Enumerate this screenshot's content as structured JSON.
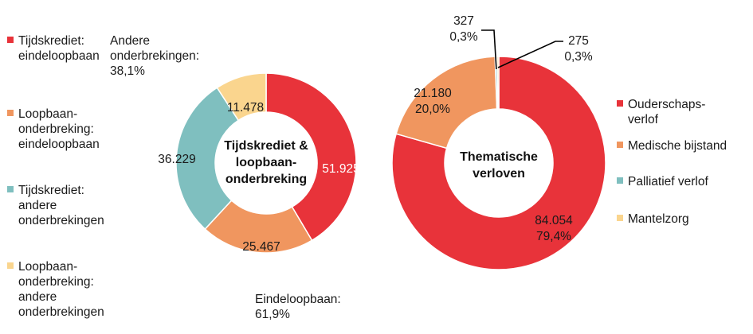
{
  "chart_data": [
    {
      "type": "pie",
      "variant": "donut",
      "title": "Tijdskrediet & loopbaan-onderbreking",
      "title_lines": [
        "Tijdskrediet &",
        "loopbaan-",
        "onderbreking"
      ],
      "slices": [
        {
          "label": "Tijdskrediet: eindeloopbaan",
          "value": 51925,
          "value_label": "51.925",
          "color": "#e8333a"
        },
        {
          "label": "Loopbaan-onderbreking: eindeloopbaan",
          "value": 25467,
          "value_label": "25.467",
          "color": "#f0965f"
        },
        {
          "label": "Tijdskrediet: andere onderbrekingen",
          "value": 36229,
          "value_label": "36.229",
          "color": "#7fbfbf"
        },
        {
          "label": "Loopbaan-onderbreking: andere onderbrekingen",
          "value": 11478,
          "value_label": "11.478",
          "color": "#fad58e"
        }
      ],
      "group_annotations": [
        {
          "lines": [
            "Andere",
            "onderbrekingen:",
            "38,1%"
          ]
        },
        {
          "lines": [
            "Eindeloopbaan:",
            "61,9%"
          ]
        }
      ],
      "legend": {
        "placement": "left",
        "entries": [
          {
            "lines": [
              "Tijdskrediet:",
              "eindeloopbaan"
            ],
            "color": "#e8333a"
          },
          {
            "lines": [
              "Loopbaan-",
              "onderbreking:",
              "eindeloopbaan"
            ],
            "color": "#f0965f"
          },
          {
            "lines": [
              "Tijdskrediet:",
              "andere",
              "onderbrekingen"
            ],
            "color": "#7fbfbf"
          },
          {
            "lines": [
              "Loopbaan-",
              "onderbreking:",
              "andere",
              "onderbrekingen"
            ],
            "color": "#fad58e"
          }
        ]
      }
    },
    {
      "type": "pie",
      "variant": "donut",
      "title": "Thematische verloven",
      "title_lines": [
        "Thematische",
        "verloven"
      ],
      "slices": [
        {
          "label": "Ouderschapsverlof",
          "value": 84054,
          "value_label": "84.054",
          "percent_label": "79,4%",
          "color": "#e8333a"
        },
        {
          "label": "Medische bijstand",
          "value": 21180,
          "value_label": "21.180",
          "percent_label": "20,0%",
          "color": "#f0965f"
        },
        {
          "label": "Palliatief verlof",
          "value": 327,
          "value_label": "327",
          "percent_label": "0,3%",
          "color": "#7fbfbf"
        },
        {
          "label": "Mantelzorg",
          "value": 275,
          "value_label": "275",
          "percent_label": "0,3%",
          "color": "#fad58e"
        }
      ],
      "legend": {
        "placement": "right",
        "entries": [
          {
            "lines": [
              "Ouderschaps-",
              "verlof"
            ],
            "color": "#e8333a"
          },
          {
            "lines": [
              "Medische bijstand"
            ],
            "color": "#f0965f"
          },
          {
            "lines": [
              "Palliatief verlof"
            ],
            "color": "#7fbfbf"
          },
          {
            "lines": [
              "Mantelzorg"
            ],
            "color": "#fad58e"
          }
        ]
      }
    }
  ]
}
